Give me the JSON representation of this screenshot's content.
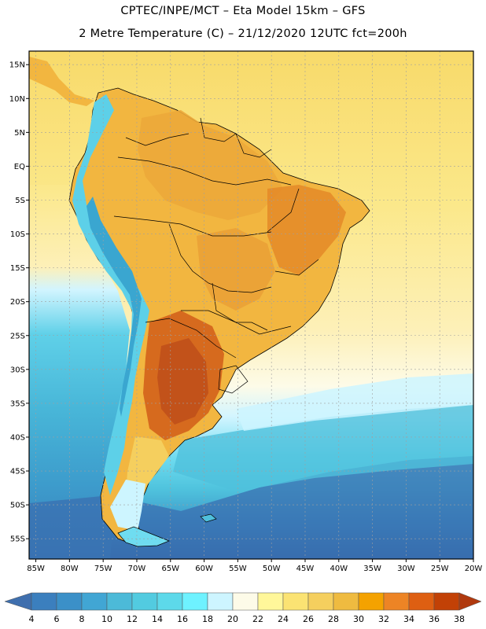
{
  "header": {
    "line1": "CPTEC/INPE/MCT –  Eta Model 15km – GFS",
    "line2": "2 Metre Temperature (C) – 21/12/2020 12UTC fct=200h"
  },
  "map": {
    "lon_range": [
      -86,
      -20
    ],
    "lat_range": [
      -58,
      17
    ],
    "x_ticks": [
      {
        "value": -85,
        "label": "85W"
      },
      {
        "value": -80,
        "label": "80W"
      },
      {
        "value": -75,
        "label": "75W"
      },
      {
        "value": -70,
        "label": "70W"
      },
      {
        "value": -65,
        "label": "65W"
      },
      {
        "value": -60,
        "label": "60W"
      },
      {
        "value": -55,
        "label": "55W"
      },
      {
        "value": -50,
        "label": "50W"
      },
      {
        "value": -45,
        "label": "45W"
      },
      {
        "value": -40,
        "label": "40W"
      },
      {
        "value": -35,
        "label": "35W"
      },
      {
        "value": -30,
        "label": "30W"
      },
      {
        "value": -25,
        "label": "25W"
      },
      {
        "value": -20,
        "label": "20W"
      }
    ],
    "y_ticks": [
      {
        "value": 15,
        "label": "15N"
      },
      {
        "value": 10,
        "label": "10N"
      },
      {
        "value": 5,
        "label": "5N"
      },
      {
        "value": 0,
        "label": "EQ"
      },
      {
        "value": -5,
        "label": "5S"
      },
      {
        "value": -10,
        "label": "10S"
      },
      {
        "value": -15,
        "label": "15S"
      },
      {
        "value": -20,
        "label": "20S"
      },
      {
        "value": -25,
        "label": "25S"
      },
      {
        "value": -30,
        "label": "30S"
      },
      {
        "value": -35,
        "label": "35S"
      },
      {
        "value": -40,
        "label": "40S"
      },
      {
        "value": -45,
        "label": "45S"
      },
      {
        "value": -50,
        "label": "50S"
      },
      {
        "value": -55,
        "label": "55S"
      }
    ],
    "colors": {
      "ocean_north": "#f8da6a",
      "ocean_tropic": "#fbe88a",
      "ocean_mid": "#fdf5cc",
      "land_base": "#f2b640",
      "land_hot": "#e07820",
      "land_very_hot": "#c8561a",
      "andes_cool": "#66d8ee",
      "andes_cold": "#3aa6d0",
      "coastline": "#000000",
      "grid": "#a0a0a0"
    }
  },
  "colorbar": {
    "labels": [
      "4",
      "6",
      "8",
      "10",
      "12",
      "14",
      "16",
      "18",
      "20",
      "22",
      "24",
      "26",
      "28",
      "30",
      "32",
      "34",
      "36",
      "38"
    ],
    "colors": [
      "#3f6fae",
      "#3b7fbe",
      "#3b90c8",
      "#41a6d4",
      "#4cbad8",
      "#52cbe0",
      "#5dd9ea",
      "#6ef2ff",
      "#cdf5ff",
      "#fdfbe8",
      "#fff79a",
      "#fbe373",
      "#f5cf5e",
      "#efbb40",
      "#f4a200",
      "#ed8425",
      "#de5f12",
      "#c24106",
      "#b0390e"
    ]
  }
}
